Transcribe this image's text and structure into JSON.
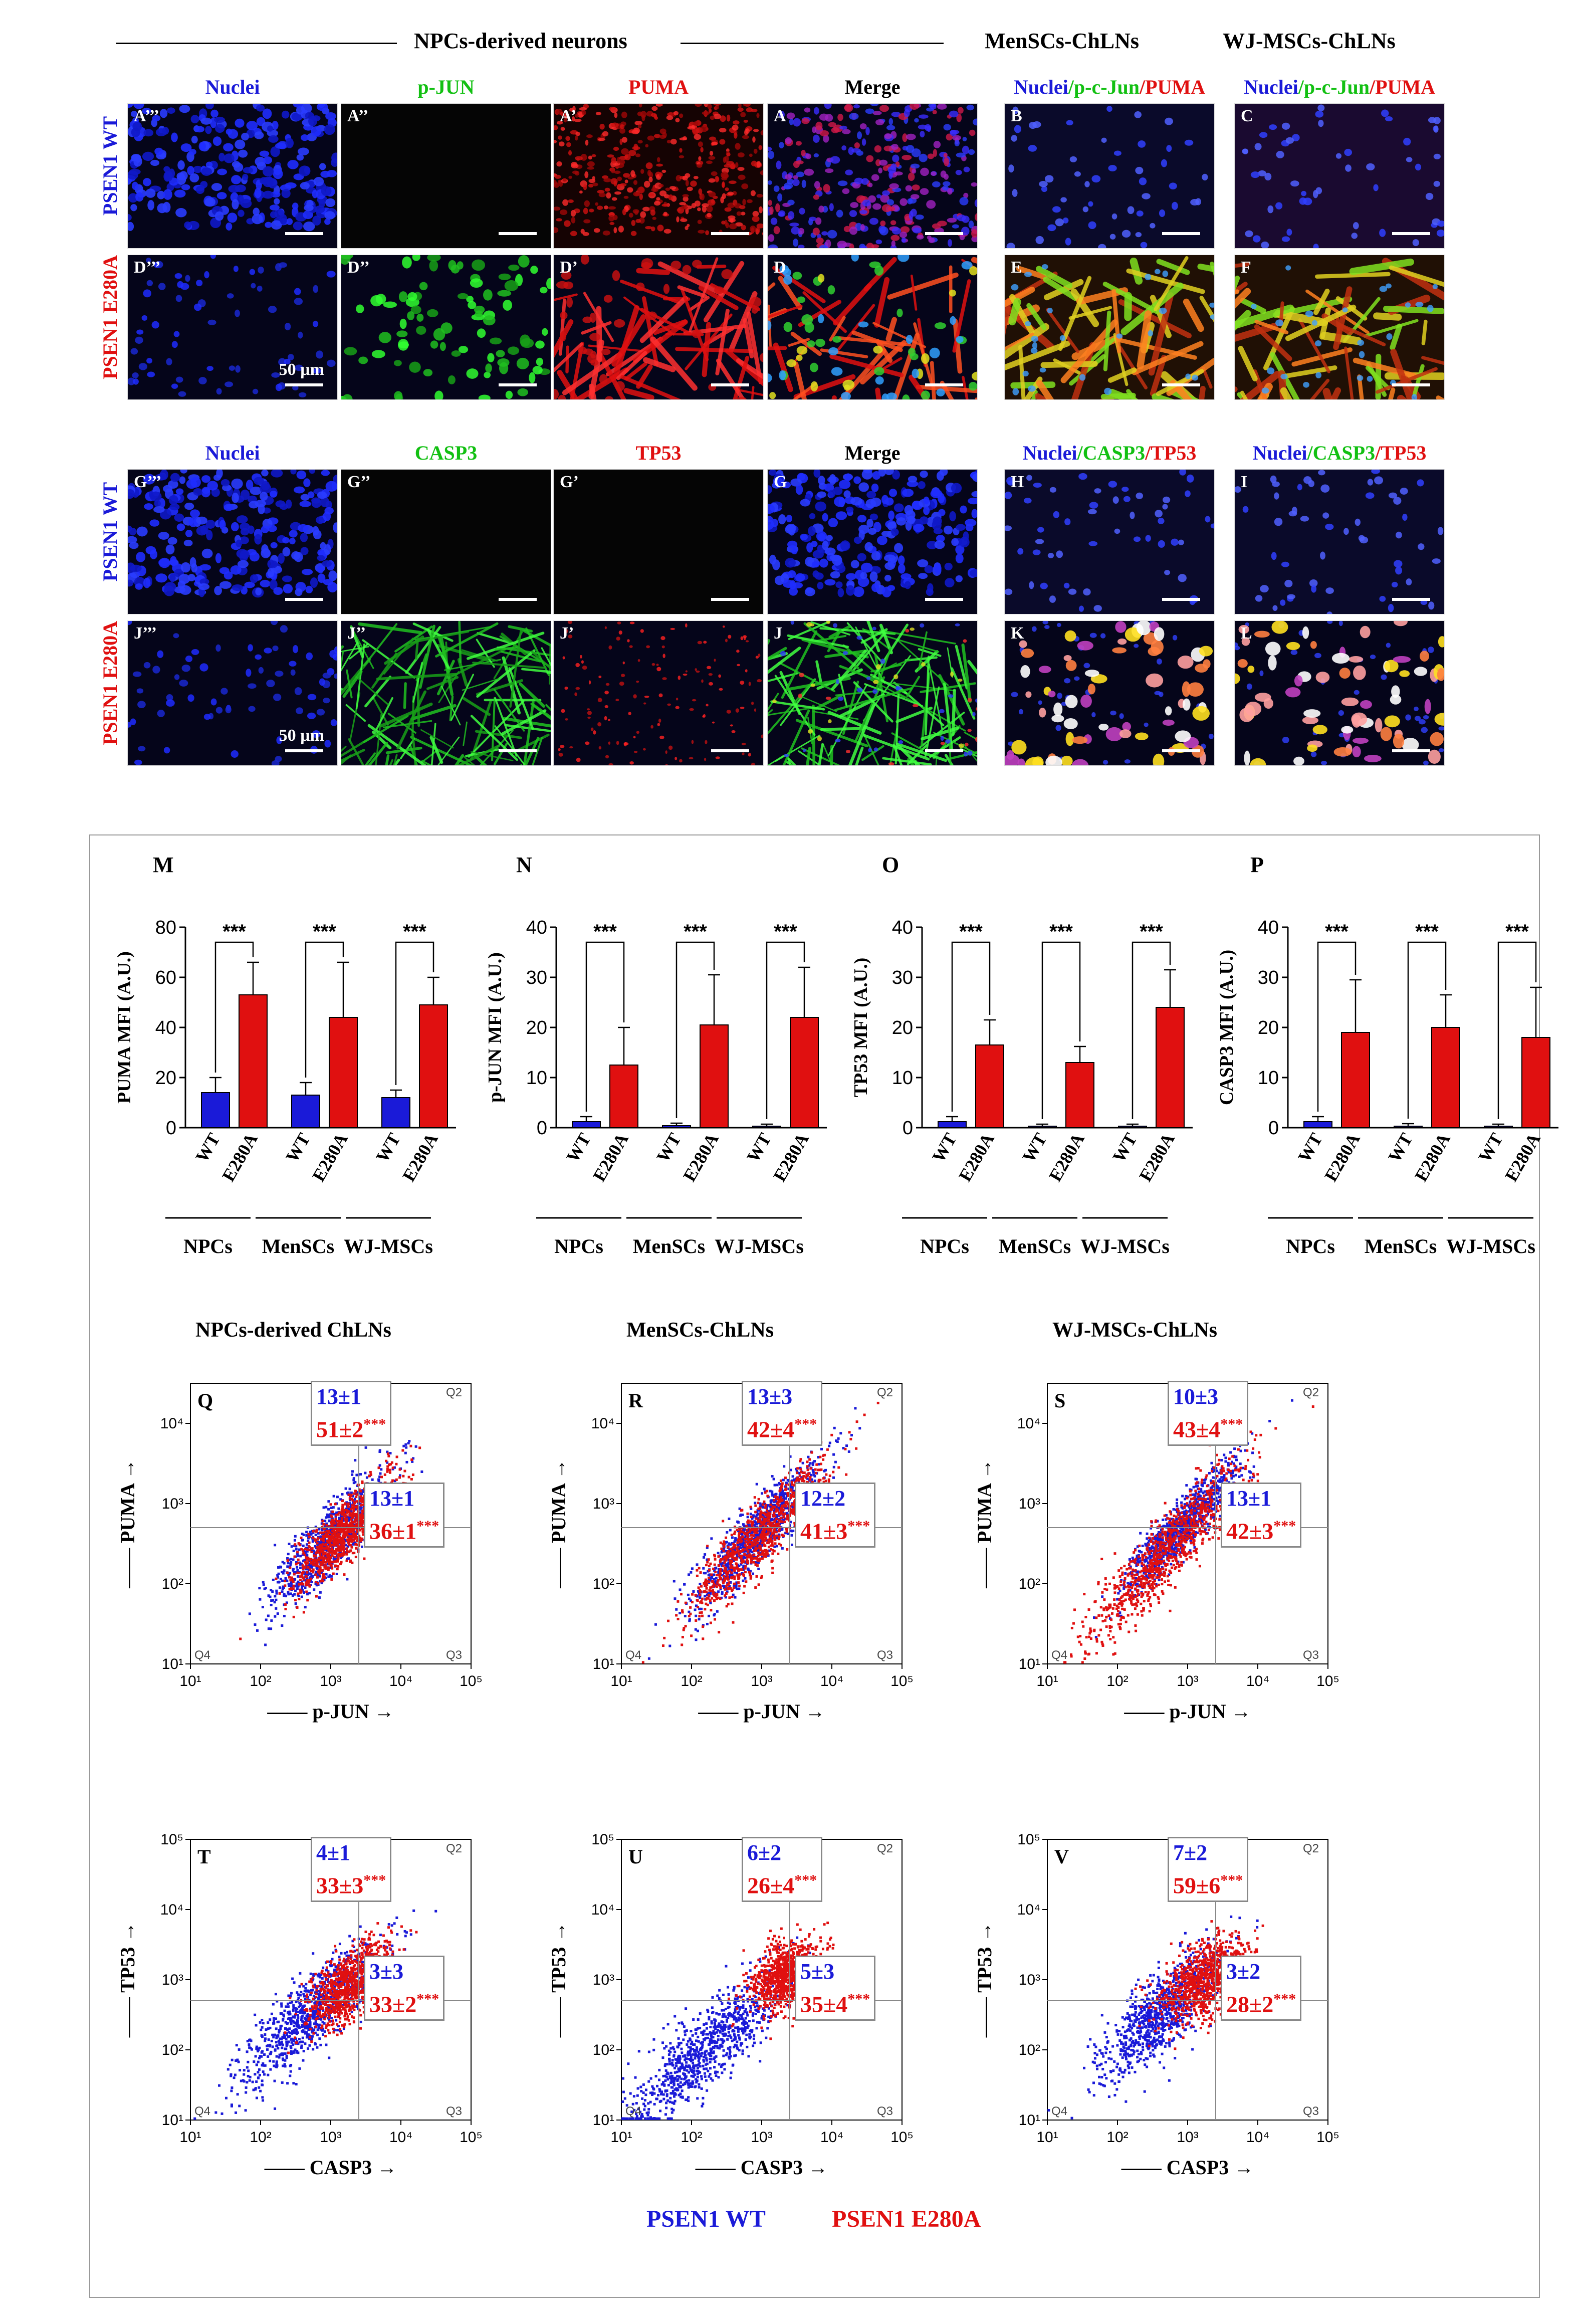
{
  "header": {
    "npc_title": "NPCs-derived neurons",
    "mensc_title": "MenSCs-ChLNs",
    "wj_title": "WJ-MSCs-ChLNs"
  },
  "block1": {
    "cols": [
      {
        "text": "Nuclei",
        "color": "#1a1ad8"
      },
      {
        "text": "p-JUN",
        "color": "#12c012"
      },
      {
        "text": "PUMA",
        "color": "#e01010"
      },
      {
        "text": "Merge",
        "color": "#000000"
      }
    ],
    "merge_label": {
      "a": "Nuclei",
      "b": "/p-c-Jun",
      "c": "/PUMA"
    },
    "rows": [
      {
        "label": "PSEN1 WT",
        "color": "#1a1ad8",
        "panels": [
          "A’’’",
          "A’’",
          "A’",
          "A",
          "B",
          "C"
        ]
      },
      {
        "label": "PSEN1 E280A",
        "color": "#e01010",
        "panels": [
          "D’’’",
          "D’’",
          "D’",
          "D",
          "E",
          "F"
        ]
      }
    ],
    "scale": "50 µm"
  },
  "block2": {
    "cols": [
      {
        "text": "Nuclei",
        "color": "#1a1ad8"
      },
      {
        "text": "CASP3",
        "color": "#12c012"
      },
      {
        "text": "TP53",
        "color": "#e01010"
      },
      {
        "text": "Merge",
        "color": "#000000"
      }
    ],
    "merge_label": {
      "a": "Nuclei",
      "b": "/CASP3",
      "c": "/TP53"
    },
    "rows": [
      {
        "label": "PSEN1 WT",
        "color": "#1a1ad8",
        "panels": [
          "G’’’",
          "G’’",
          "G’",
          "G",
          "H",
          "I"
        ]
      },
      {
        "label": "PSEN1 E280A",
        "color": "#e01010",
        "panels": [
          "J’’’",
          "J’’",
          "J’",
          "J",
          "K",
          "L"
        ]
      }
    ],
    "scale": "50 µm"
  },
  "chart_data": [
    {
      "type": "bar",
      "panel": "M",
      "ylabel": "PUMA MFI (A.U.)",
      "ylim": [
        0,
        80
      ],
      "yticks": [
        0,
        20,
        40,
        60,
        80
      ],
      "categories": [
        "WT",
        "E280A",
        "WT",
        "E280A",
        "WT",
        "E280A"
      ],
      "groups": [
        "NPCs",
        "MenSCs",
        "WJ-MSCs"
      ],
      "values": [
        14,
        53,
        13,
        44,
        12,
        49
      ],
      "errors": [
        6,
        13,
        5,
        22,
        3,
        11
      ],
      "significance": "***",
      "colors": [
        "#1a1ad8",
        "#e01010"
      ]
    },
    {
      "type": "bar",
      "panel": "N",
      "ylabel": "p-JUN MFI (A.U.)",
      "ylim": [
        0,
        40
      ],
      "yticks": [
        0,
        10,
        20,
        30,
        40
      ],
      "categories": [
        "WT",
        "E280A",
        "WT",
        "E280A",
        "WT",
        "E280A"
      ],
      "groups": [
        "NPCs",
        "MenSCs",
        "WJ-MSCs"
      ],
      "values": [
        1.2,
        12.5,
        0.4,
        20.5,
        0.3,
        22
      ],
      "errors": [
        1,
        7.5,
        0.5,
        10,
        0.4,
        10
      ],
      "significance": "***",
      "colors": [
        "#1a1ad8",
        "#e01010"
      ]
    },
    {
      "type": "bar",
      "panel": "O",
      "ylabel": "TP53 MFI (A.U.)",
      "ylim": [
        0,
        40
      ],
      "yticks": [
        0,
        10,
        20,
        30,
        40
      ],
      "categories": [
        "WT",
        "E280A",
        "WT",
        "E280A",
        "WT",
        "E280A"
      ],
      "groups": [
        "NPCs",
        "MenSCs",
        "WJ-MSCs"
      ],
      "values": [
        1.2,
        16.5,
        0.3,
        13,
        0.3,
        24
      ],
      "errors": [
        1,
        5,
        0.4,
        3.2,
        0.4,
        7.5
      ],
      "significance": "***",
      "colors": [
        "#1a1ad8",
        "#e01010"
      ]
    },
    {
      "type": "bar",
      "panel": "P",
      "ylabel": "CASP3 MFI (A.U.)",
      "ylim": [
        0,
        40
      ],
      "yticks": [
        0,
        10,
        20,
        30,
        40
      ],
      "categories": [
        "WT",
        "E280A",
        "WT",
        "E280A",
        "WT",
        "E280A"
      ],
      "groups": [
        "NPCs",
        "MenSCs",
        "WJ-MSCs"
      ],
      "values": [
        1.2,
        19,
        0.3,
        20,
        0.3,
        18
      ],
      "errors": [
        1,
        10.5,
        0.5,
        6.5,
        0.4,
        10
      ],
      "significance": "***",
      "colors": [
        "#1a1ad8",
        "#e01010"
      ]
    },
    {
      "type": "scatter",
      "panel": "Q",
      "title": "NPCs-derived ChLNs",
      "xlabel": "p-JUN",
      "ylabel": "PUMA",
      "xlim": [
        10,
        100000
      ],
      "ylim": [
        10,
        30000
      ],
      "xticks": [
        "10¹",
        "10²",
        "10³",
        "10⁴",
        "10⁵"
      ],
      "yticks": [
        "10¹",
        "10²",
        "10³",
        "10⁴"
      ],
      "quadrants": [
        "Q2",
        "Q3",
        "Q4"
      ],
      "q2": {
        "wt": "13±1",
        "e280a": "51±2",
        "sig": "***"
      },
      "q1": {
        "wt": "13±1",
        "e280a": "36±1",
        "sig": "***"
      }
    },
    {
      "type": "scatter",
      "panel": "R",
      "title": "MenSCs-ChLNs",
      "xlabel": "p-JUN",
      "ylabel": "PUMA",
      "xlim": [
        10,
        100000
      ],
      "ylim": [
        10,
        30000
      ],
      "xticks": [
        "10¹",
        "10²",
        "10³",
        "10⁴",
        "10⁵"
      ],
      "yticks": [
        "10¹",
        "10²",
        "10³",
        "10⁴"
      ],
      "quadrants": [
        "Q2",
        "Q3",
        "Q4"
      ],
      "q2": {
        "wt": "13±3",
        "e280a": "42±4",
        "sig": "***"
      },
      "q1": {
        "wt": "12±2",
        "e280a": "41±3",
        "sig": "***"
      }
    },
    {
      "type": "scatter",
      "panel": "S",
      "title": "WJ-MSCs-ChLNs",
      "xlabel": "p-JUN",
      "ylabel": "PUMA",
      "xlim": [
        10,
        100000
      ],
      "ylim": [
        10,
        30000
      ],
      "xticks": [
        "10¹",
        "10²",
        "10³",
        "10⁴",
        "10⁵"
      ],
      "yticks": [
        "10¹",
        "10²",
        "10³",
        "10⁴"
      ],
      "quadrants": [
        "Q2",
        "Q3",
        "Q4"
      ],
      "q2": {
        "wt": "10±3",
        "e280a": "43±4",
        "sig": "***"
      },
      "q1": {
        "wt": "13±1",
        "e280a": "42±3",
        "sig": "***"
      }
    },
    {
      "type": "scatter",
      "panel": "T",
      "title": "",
      "xlabel": "CASP3",
      "ylabel": "TP53",
      "xlim": [
        10,
        100000
      ],
      "ylim": [
        10,
        100000
      ],
      "xticks": [
        "10¹",
        "10²",
        "10³",
        "10⁴",
        "10⁵"
      ],
      "yticks": [
        "10¹",
        "10²",
        "10³",
        "10⁴",
        "10⁵"
      ],
      "quadrants": [
        "Q2",
        "Q3",
        "Q4"
      ],
      "q2": {
        "wt": "4±1",
        "e280a": "33±3",
        "sig": "***"
      },
      "q1": {
        "wt": "3±3",
        "e280a": "33±2",
        "sig": "***"
      }
    },
    {
      "type": "scatter",
      "panel": "U",
      "title": "",
      "xlabel": "CASP3",
      "ylabel": "TP53",
      "xlim": [
        10,
        100000
      ],
      "ylim": [
        10,
        100000
      ],
      "xticks": [
        "10¹",
        "10²",
        "10³",
        "10⁴",
        "10⁵"
      ],
      "yticks": [
        "10¹",
        "10²",
        "10³",
        "10⁴",
        "10⁵"
      ],
      "quadrants": [
        "Q2",
        "Q3",
        "Q4"
      ],
      "q2": {
        "wt": "6±2",
        "e280a": "26±4",
        "sig": "***"
      },
      "q1": {
        "wt": "5±3",
        "e280a": "35±4",
        "sig": "***"
      }
    },
    {
      "type": "scatter",
      "panel": "V",
      "title": "",
      "xlabel": "CASP3",
      "ylabel": "TP53",
      "xlim": [
        10,
        100000
      ],
      "ylim": [
        10,
        100000
      ],
      "xticks": [
        "10¹",
        "10²",
        "10³",
        "10⁴",
        "10⁵"
      ],
      "yticks": [
        "10¹",
        "10²",
        "10³",
        "10⁴",
        "10⁵"
      ],
      "quadrants": [
        "Q2",
        "Q3",
        "Q4"
      ],
      "q2": {
        "wt": "7±2",
        "e280a": "59±6",
        "sig": "***"
      },
      "q1": {
        "wt": "3±2",
        "e280a": "28±2",
        "sig": "***"
      }
    }
  ],
  "legend": {
    "wt": "PSEN1 WT",
    "e280a": "PSEN1 E280A",
    "wt_color": "#1a1ad8",
    "e280a_color": "#e01010"
  }
}
